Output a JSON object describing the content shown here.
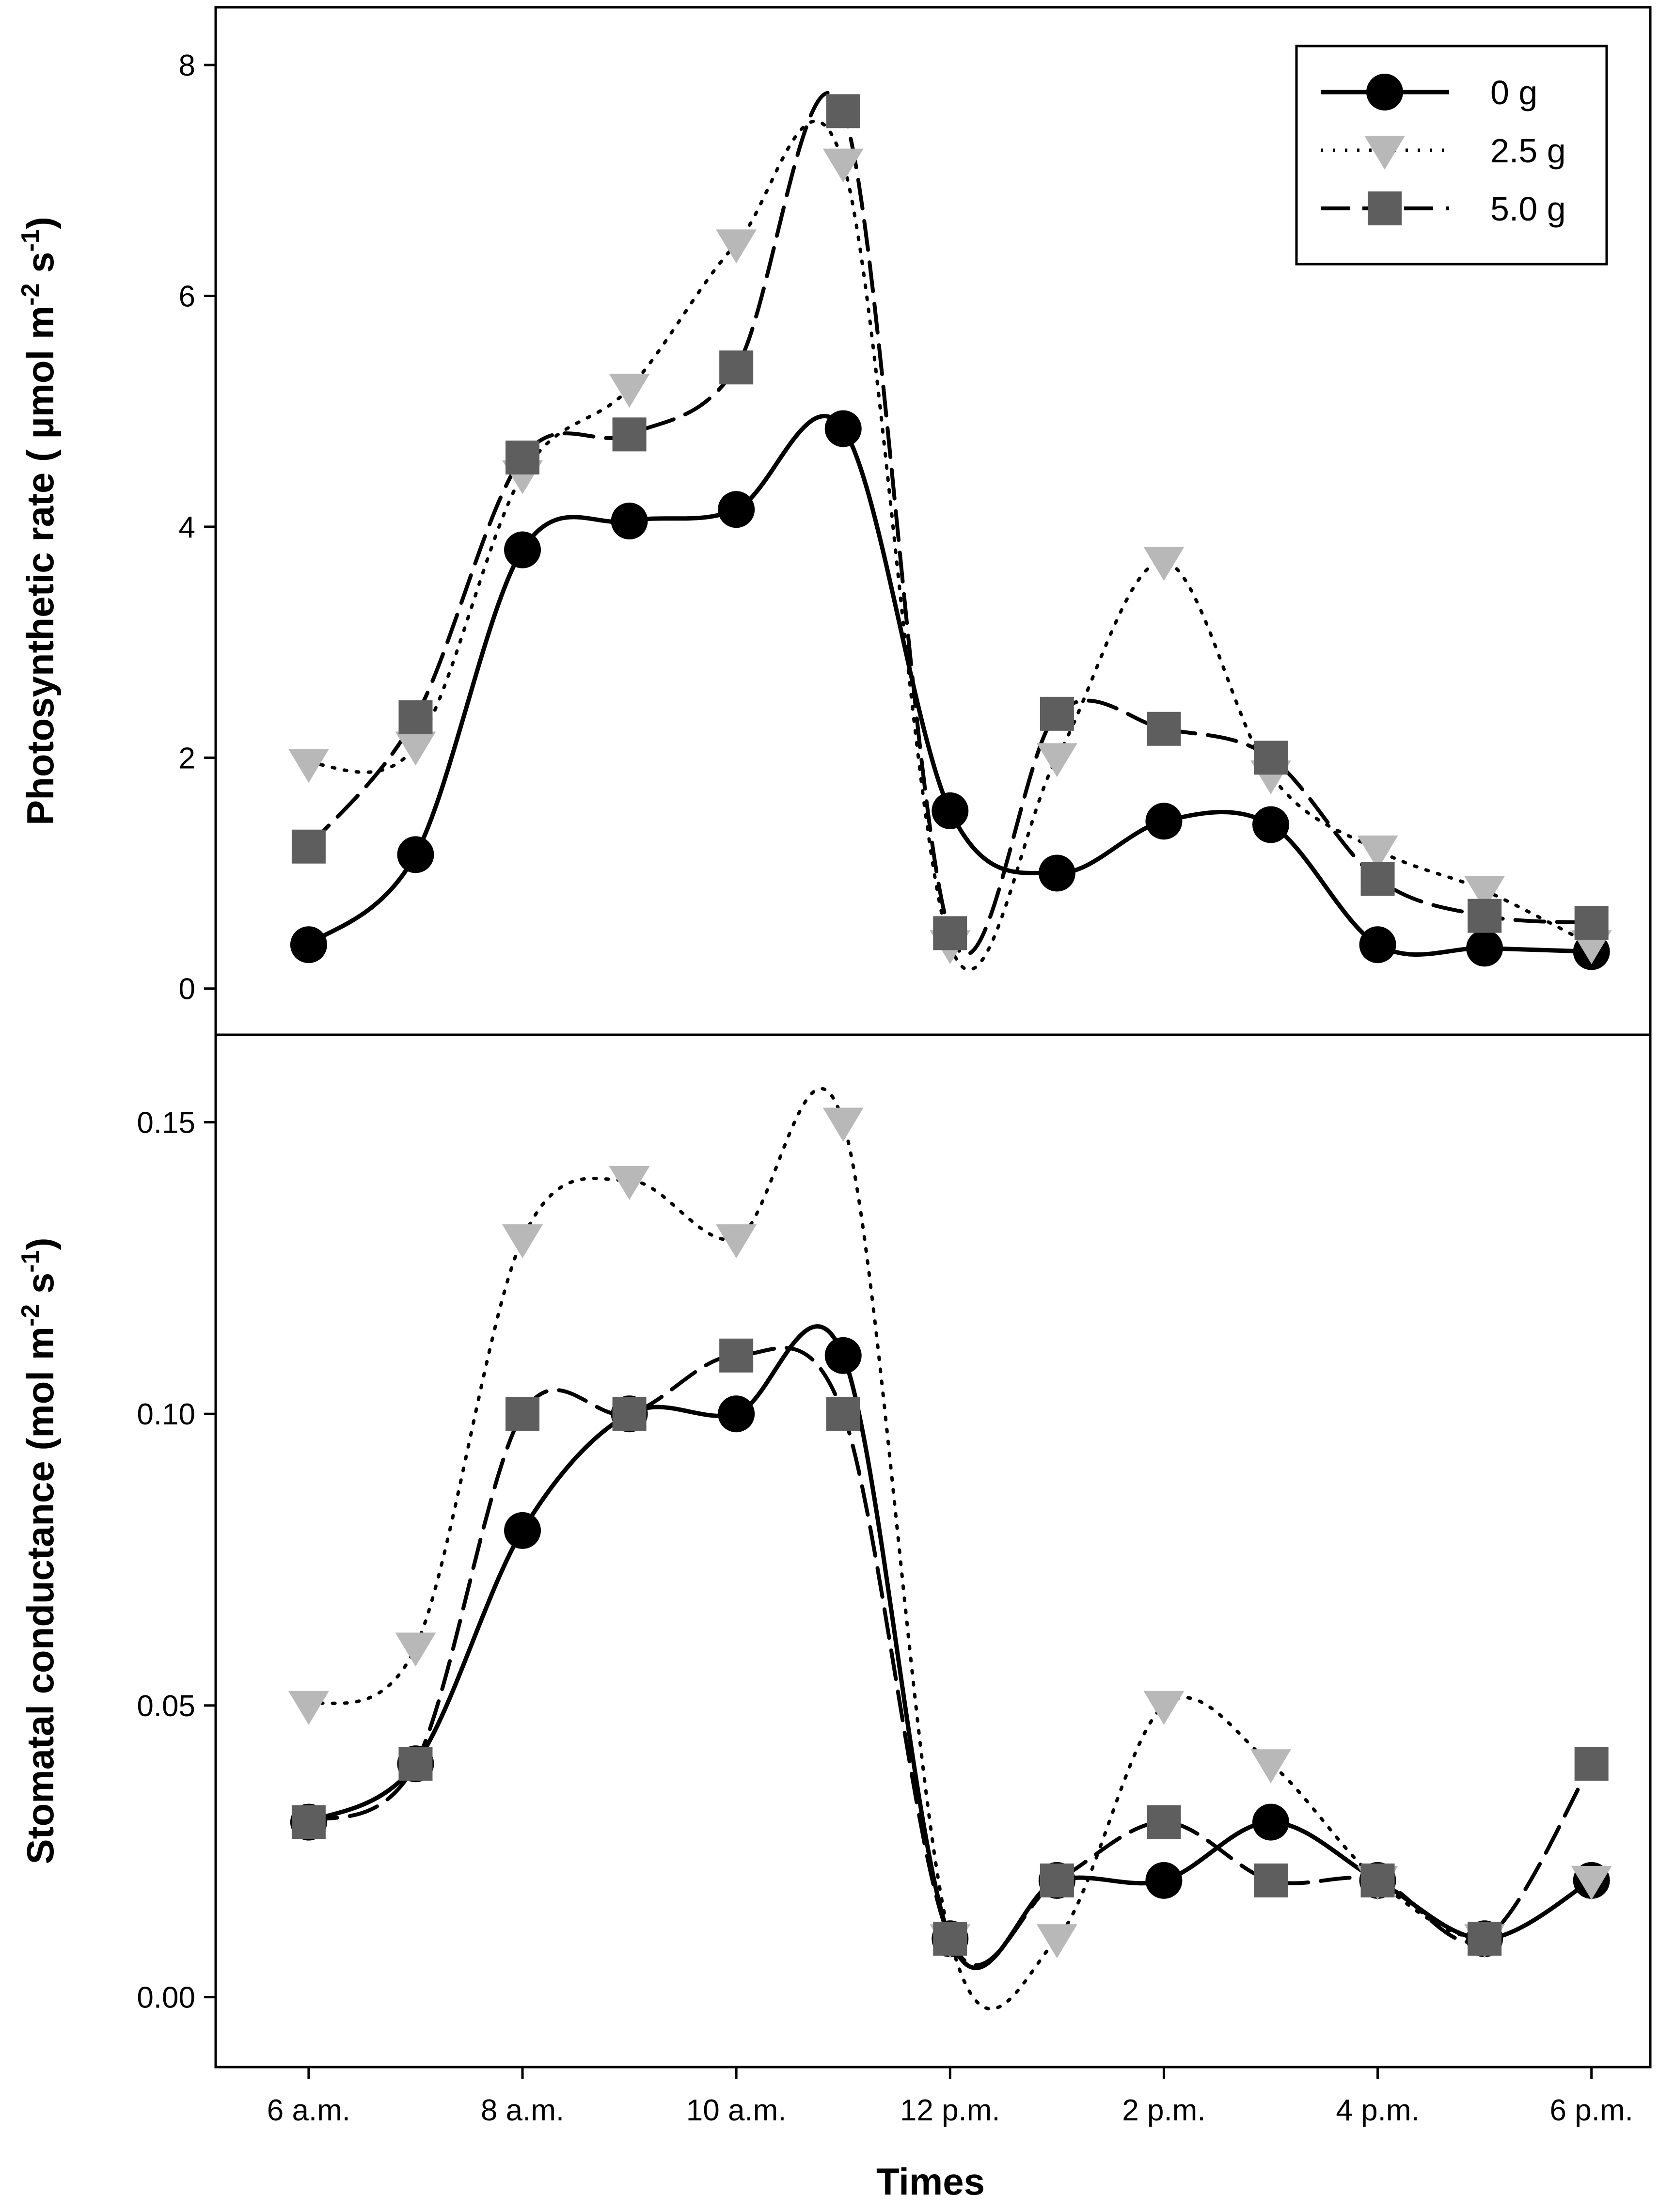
{
  "figure": {
    "x_title": "Times",
    "legend": [
      {
        "label": "0 g",
        "style": "solid",
        "marker": "circle",
        "color": "#000000"
      },
      {
        "label": "2.5 g",
        "style": "dotted",
        "marker": "triangle-down",
        "color": "#b8b8b8"
      },
      {
        "label": "5.0 g",
        "style": "dashed",
        "marker": "square",
        "color": "#5e5e5e"
      }
    ]
  },
  "chart_data": [
    {
      "type": "line",
      "ylabel": "Photosynthetic rate ( µmol m-2 s-1)",
      "ylabel_parts": {
        "base": "Photosynthetic rate ( µmol m",
        "exp1": "-2",
        "mid": " s",
        "exp2": "-1",
        "end": ")"
      },
      "ylim": [
        -0.4,
        8.5
      ],
      "yticks": [
        0,
        2,
        4,
        6,
        8
      ],
      "ytick_labels": [
        "0",
        "2",
        "4",
        "6",
        "8"
      ],
      "x": [
        6,
        7,
        8,
        9,
        10,
        11,
        12,
        13,
        14,
        15,
        16,
        17,
        18
      ],
      "series": [
        {
          "name": "0 g",
          "values": [
            0.38,
            1.16,
            3.8,
            4.05,
            4.15,
            4.85,
            1.54,
            1.0,
            1.45,
            1.42,
            0.38,
            0.35,
            0.32
          ]
        },
        {
          "name": "2.5 g",
          "values": [
            1.95,
            2.1,
            4.45,
            5.2,
            6.45,
            7.15,
            0.38,
            2.0,
            3.7,
            1.85,
            1.2,
            0.85,
            0.38
          ]
        },
        {
          "name": "5.0 g",
          "values": [
            1.23,
            2.35,
            4.6,
            4.8,
            5.38,
            7.6,
            0.48,
            2.38,
            2.25,
            2.0,
            0.95,
            0.63,
            0.57
          ]
        }
      ],
      "legend_position": "top-right"
    },
    {
      "type": "line",
      "ylabel": "Stomatal conductance (mol m-2 s-1)",
      "ylabel_parts": {
        "base": "Stomatal conductance (mol m",
        "exp1": "-2",
        "mid": " s",
        "exp2": "-1",
        "end": ")"
      },
      "ylim": [
        -0.012,
        0.165
      ],
      "yticks": [
        0.0,
        0.05,
        0.1,
        0.15
      ],
      "ytick_labels": [
        "0.00",
        "0.05",
        "0.10",
        "0.15"
      ],
      "x": [
        6,
        7,
        8,
        9,
        10,
        11,
        12,
        13,
        14,
        15,
        16,
        17,
        18
      ],
      "xticks": [
        6,
        8,
        10,
        12,
        14,
        16,
        18
      ],
      "xtick_labels": [
        "6 a.m.",
        "8 a.m.",
        "10 a.m.",
        "12 p.m.",
        "2 p.m.",
        "4 p.m.",
        "6 p.m."
      ],
      "series": [
        {
          "name": "0 g",
          "values": [
            0.03,
            0.04,
            0.08,
            0.1,
            0.1,
            0.11,
            0.01,
            0.02,
            0.02,
            0.03,
            0.02,
            0.01,
            0.02
          ]
        },
        {
          "name": "2.5 g",
          "values": [
            0.05,
            0.06,
            0.13,
            0.14,
            0.13,
            0.15,
            0.01,
            0.01,
            0.05,
            0.04,
            0.02,
            0.01,
            0.02
          ]
        },
        {
          "name": "5.0 g",
          "values": [
            0.03,
            0.04,
            0.1,
            0.1,
            0.11,
            0.1,
            0.01,
            0.02,
            0.03,
            0.02,
            0.02,
            0.01,
            0.04
          ]
        }
      ]
    }
  ]
}
